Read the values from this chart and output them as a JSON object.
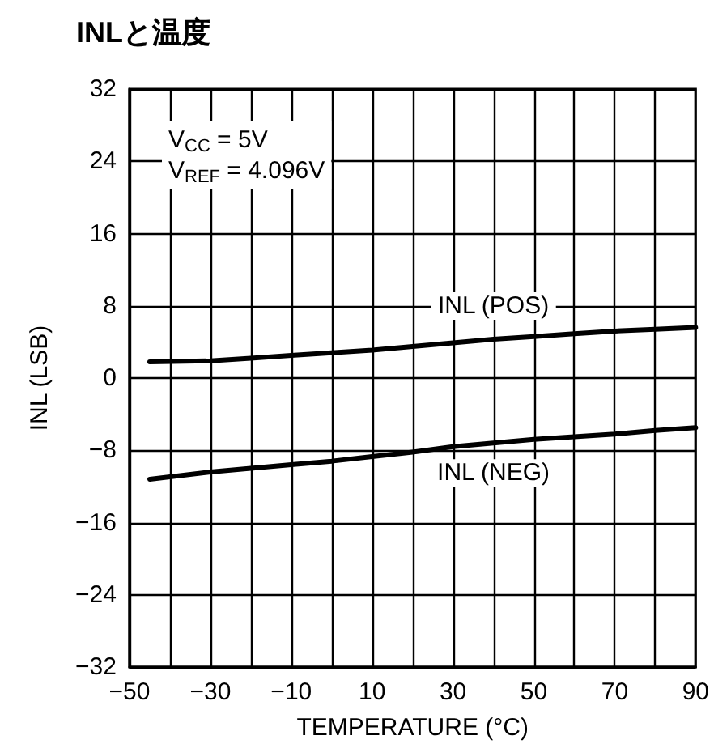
{
  "chart_data": {
    "type": "line",
    "title": "INLと温度",
    "xlabel": "TEMPERATURE (°C)",
    "ylabel": "INL (LSB)",
    "x": [
      -45,
      -30,
      -20,
      -10,
      0,
      10,
      20,
      30,
      40,
      50,
      60,
      70,
      80,
      90
    ],
    "series": [
      {
        "name": "INL (POS)",
        "color": "#000000",
        "values": [
          1.8,
          1.9,
          2.2,
          2.5,
          2.8,
          3.1,
          3.5,
          3.9,
          4.3,
          4.6,
          4.9,
          5.2,
          5.4,
          5.6
        ]
      },
      {
        "name": "INL (NEG)",
        "color": "#000000",
        "values": [
          -11.2,
          -10.4,
          -10,
          -9.6,
          -9.2,
          -8.7,
          -8.2,
          -7.6,
          -7.2,
          -6.8,
          -6.5,
          -6.2,
          -5.8,
          -5.5
        ]
      }
    ],
    "xlim": [
      -50,
      90
    ],
    "xticks": [
      {
        "value": -50,
        "label": "−50"
      },
      {
        "value": -40,
        "label": null
      },
      {
        "value": -30,
        "label": "−30"
      },
      {
        "value": -20,
        "label": null
      },
      {
        "value": -10,
        "label": "−10"
      },
      {
        "value": 0,
        "label": null
      },
      10,
      {
        "value": 20,
        "label": null
      },
      30,
      {
        "value": 40,
        "label": null
      },
      50,
      {
        "value": 60,
        "label": null
      },
      70,
      {
        "value": 80,
        "label": null
      },
      90
    ],
    "ylim": [
      -32,
      32
    ],
    "yticks": [
      {
        "value": -32,
        "label": "−32"
      },
      {
        "value": -24,
        "label": "−24"
      },
      {
        "value": -16,
        "label": "−16"
      },
      {
        "value": -8,
        "label": "−8"
      },
      0,
      8,
      16,
      24,
      32
    ],
    "annotations": [
      "V$_{CC}$ = 5V",
      "V$_{REF}$ = 4.096V"
    ],
    "grid": true,
    "legend": false,
    "marker": "none",
    "line_style": "solid"
  }
}
